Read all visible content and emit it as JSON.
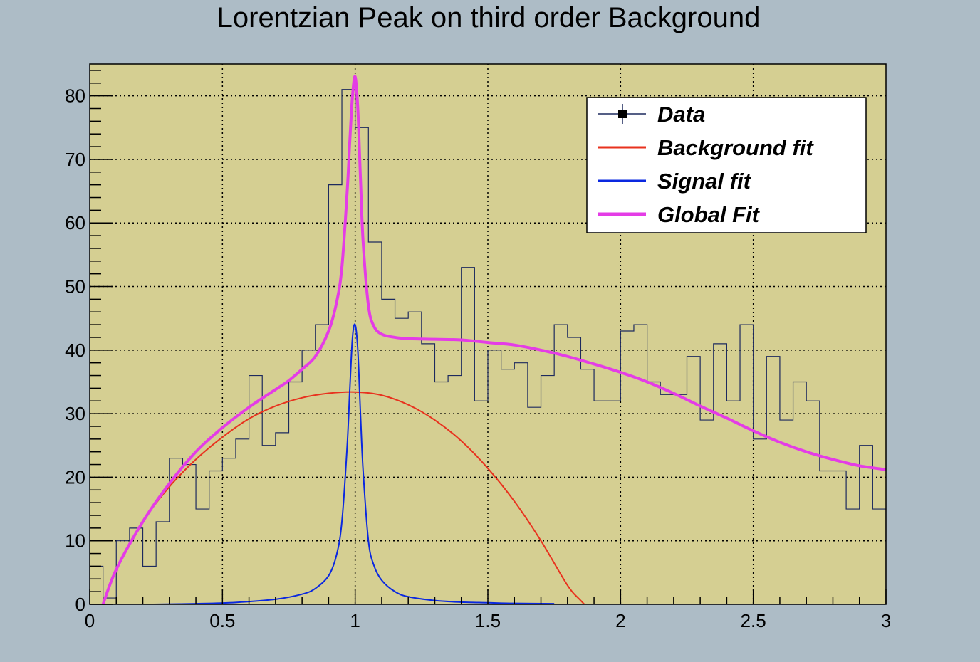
{
  "chart_data": {
    "type": "line",
    "title": "Lorentzian Peak on third order Background",
    "xlabel": "",
    "ylabel": "",
    "xlim": [
      0,
      3
    ],
    "ylim": [
      0,
      85
    ],
    "grid": true,
    "x_ticks": [
      "0",
      "0.5",
      "1",
      "1.5",
      "2",
      "2.5",
      "3"
    ],
    "x_tick_values": [
      0,
      0.5,
      1,
      1.5,
      2,
      2.5,
      3
    ],
    "y_ticks": [
      "0",
      "10",
      "20",
      "30",
      "40",
      "50",
      "60",
      "70",
      "80"
    ],
    "y_tick_values": [
      0,
      10,
      20,
      30,
      40,
      50,
      60,
      70,
      80
    ],
    "legend_position": "top-right",
    "colors": {
      "frame_background": "#adbcc6",
      "plot_background": "#d5cf92",
      "data": "#1d2a5e",
      "background_fit": "#e8321e",
      "signal_fit": "#0a28e0",
      "global_fit": "#e43ce6"
    },
    "histogram": {
      "name": "Data",
      "bin_width": 0.05,
      "bin_low_edges": [
        0,
        0.05,
        0.1,
        0.15,
        0.2,
        0.25,
        0.3,
        0.35,
        0.4,
        0.45,
        0.5,
        0.55,
        0.6,
        0.65,
        0.7,
        0.75,
        0.8,
        0.85,
        0.9,
        0.95,
        1.0,
        1.05,
        1.1,
        1.15,
        1.2,
        1.25,
        1.3,
        1.35,
        1.4,
        1.45,
        1.5,
        1.55,
        1.6,
        1.65,
        1.7,
        1.75,
        1.8,
        1.85,
        1.9,
        1.95,
        2.0,
        2.05,
        2.1,
        2.15,
        2.2,
        2.25,
        2.3,
        2.35,
        2.4,
        2.45,
        2.5,
        2.55,
        2.6,
        2.65,
        2.7,
        2.75,
        2.8,
        2.85,
        2.9,
        2.95
      ],
      "counts": [
        6,
        1,
        10,
        12,
        6,
        13,
        23,
        22,
        15,
        21,
        23,
        26,
        36,
        25,
        27,
        35,
        40,
        44,
        66,
        81,
        75,
        57,
        48,
        45,
        46,
        41,
        35,
        36,
        53,
        32,
        40,
        37,
        38,
        31,
        36,
        44,
        42,
        37,
        32,
        32,
        43,
        44,
        35,
        33,
        33,
        39,
        29,
        41,
        32,
        44,
        26,
        39,
        29,
        35,
        32,
        21,
        21,
        15,
        25,
        15
      ]
    },
    "series": [
      {
        "name": "Background fit",
        "x": [
          0.05,
          0.1,
          0.2,
          0.3,
          0.4,
          0.5,
          0.6,
          0.7,
          0.8,
          0.9,
          1.0,
          1.1,
          1.2,
          1.3,
          1.4,
          1.5,
          1.6,
          1.7,
          1.8,
          1.85,
          1.9,
          1.92
        ],
        "y": [
          0.0,
          5.5,
          13.0,
          18.5,
          22.8,
          26.3,
          29.2,
          31.2,
          32.5,
          33.2,
          33.4,
          32.9,
          31.4,
          29.0,
          25.7,
          21.4,
          16.2,
          10.0,
          3.0,
          0.6,
          -1.5,
          -2.4
        ]
      },
      {
        "name": "Signal fit",
        "x": [
          0.24,
          0.4,
          0.55,
          0.7,
          0.8,
          0.85,
          0.9,
          0.93,
          0.95,
          0.97,
          0.98,
          0.99,
          1.0,
          1.01,
          1.02,
          1.03,
          1.05,
          1.07,
          1.1,
          1.15,
          1.2,
          1.3,
          1.4,
          1.5,
          1.6,
          1.75
        ],
        "y": [
          0.0,
          0.1,
          0.3,
          0.8,
          1.6,
          2.5,
          4.5,
          7.8,
          13.0,
          25.0,
          34.0,
          42.0,
          44.0,
          40.0,
          30.0,
          21.0,
          10.0,
          6.2,
          3.8,
          2.0,
          1.2,
          0.6,
          0.35,
          0.25,
          0.15,
          0.1
        ]
      },
      {
        "name": "Global Fit",
        "x": [
          0.05,
          0.1,
          0.2,
          0.3,
          0.4,
          0.5,
          0.6,
          0.7,
          0.75,
          0.8,
          0.85,
          0.9,
          0.93,
          0.95,
          0.97,
          0.98,
          0.99,
          1.0,
          1.01,
          1.02,
          1.03,
          1.05,
          1.07,
          1.1,
          1.15,
          1.2,
          1.3,
          1.4,
          1.5,
          1.6,
          1.7,
          1.8,
          1.9,
          2.0,
          2.1,
          2.2,
          2.3,
          2.4,
          2.5,
          2.6,
          2.7,
          2.8,
          2.9,
          3.0
        ],
        "y": [
          0.0,
          5.5,
          13.0,
          19.0,
          24.0,
          27.8,
          31.0,
          33.8,
          35.2,
          37.0,
          39.0,
          43.0,
          47.5,
          53.0,
          65.0,
          73.0,
          80.0,
          83.0,
          78.0,
          67.0,
          57.0,
          47.0,
          43.8,
          42.5,
          42.0,
          41.8,
          41.7,
          41.6,
          41.2,
          40.8,
          40.0,
          39.0,
          37.8,
          36.5,
          35.0,
          33.2,
          31.2,
          29.3,
          27.3,
          25.5,
          24.0,
          22.8,
          21.8,
          21.2
        ]
      }
    ]
  }
}
